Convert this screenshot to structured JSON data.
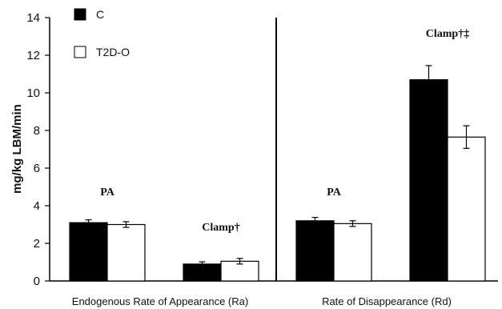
{
  "chart_data": {
    "type": "bar",
    "ylabel": "mg/kg LBM/min",
    "ylim": [
      0,
      14
    ],
    "yticks": [
      0,
      2,
      4,
      6,
      8,
      10,
      12,
      14
    ],
    "groups": [
      {
        "label": "Endogenous Rate of Appearance (Ra)",
        "conditions": [
          {
            "annotation": "PA",
            "values": [
              3.1,
              3.0
            ],
            "errors": [
              0.15,
              0.15
            ]
          },
          {
            "annotation": "Clamp†",
            "values": [
              0.9,
              1.05
            ],
            "errors": [
              0.12,
              0.15
            ]
          }
        ]
      },
      {
        "label": "Rate of Disappearance (Rd)",
        "conditions": [
          {
            "annotation": "PA",
            "values": [
              3.2,
              3.05
            ],
            "errors": [
              0.18,
              0.15
            ]
          },
          {
            "annotation": "Clamp†‡",
            "values": [
              10.7,
              7.65
            ],
            "errors": [
              0.75,
              0.6
            ]
          }
        ]
      }
    ],
    "series": [
      {
        "name": "C",
        "color": "#000000"
      },
      {
        "name": "T2D-O",
        "color": "#ffffff"
      }
    ],
    "legend_position": "top-left",
    "grid": false
  }
}
